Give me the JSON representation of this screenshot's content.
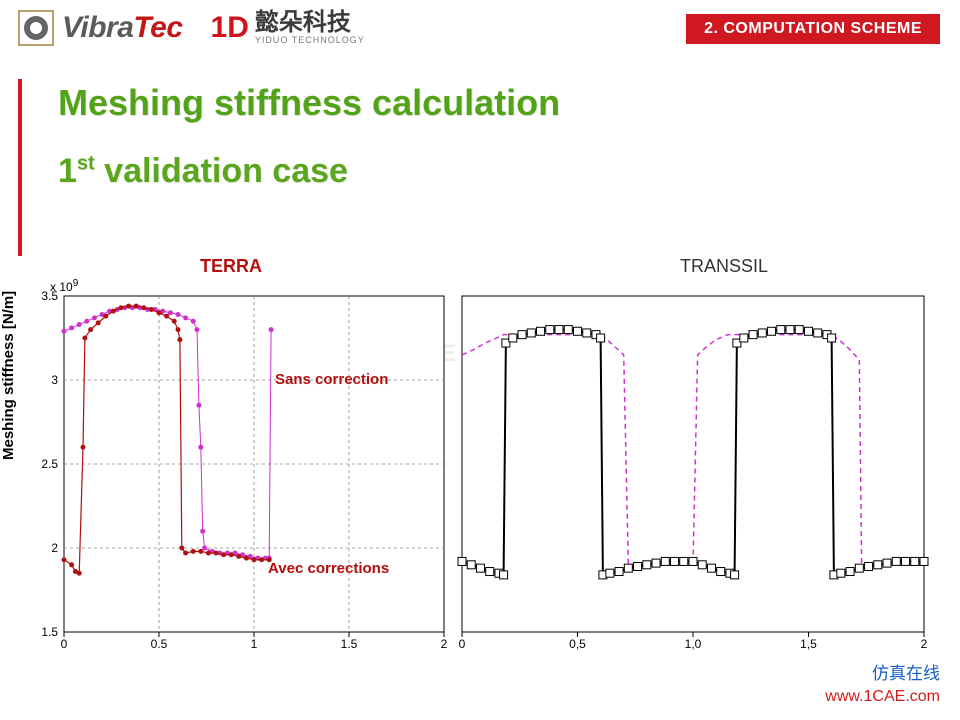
{
  "header": {
    "logo1_vibra": "Vibra",
    "logo1_tec": "Tec",
    "logo2_mark": "1D",
    "logo2_cn": "懿朵科技",
    "logo2_en": "YIDUO TECHNOLOGY",
    "tag": "2. COMPUTATION SCHEME"
  },
  "titles": {
    "main": "Meshing stiffness calculation",
    "sub_before": "1",
    "sub_sup": "st",
    "sub_after": " validation case"
  },
  "watermark": "1CAE.COM",
  "ylabel": "Meshing stiffness  [N/m]",
  "exponent_label": "x 10",
  "exponent_sup": "9",
  "chart_left": {
    "title": "TERRA",
    "note_top": "Sans correction",
    "note_bot": "Avec corrections",
    "type": "line+markers",
    "xlim": [
      0,
      2
    ],
    "ylim": [
      1.5,
      3.5
    ],
    "xticks": [
      0,
      0.5,
      1,
      1.5,
      2
    ],
    "yticks": [
      1.5,
      2,
      2.5,
      3,
      3.5
    ],
    "xtick_labels": [
      "0",
      "0.5",
      "1",
      "1.5",
      "2"
    ],
    "ytick_labels": [
      "1.5",
      "2",
      "2.5",
      "3",
      "3.5"
    ],
    "grid_color": "#888888",
    "grid_dash": "3,3",
    "border_color": "#000000",
    "background": "#ffffff",
    "series": [
      {
        "name": "sans",
        "color": "#d030d0",
        "line_width": 1,
        "dash": "none",
        "marker": "dot",
        "marker_size": 2.5,
        "pts": [
          [
            0.0,
            3.29
          ],
          [
            0.04,
            3.31
          ],
          [
            0.08,
            3.33
          ],
          [
            0.12,
            3.35
          ],
          [
            0.16,
            3.37
          ],
          [
            0.2,
            3.39
          ],
          [
            0.24,
            3.41
          ],
          [
            0.28,
            3.42
          ],
          [
            0.32,
            3.43
          ],
          [
            0.36,
            3.43
          ],
          [
            0.4,
            3.43
          ],
          [
            0.44,
            3.42
          ],
          [
            0.48,
            3.42
          ],
          [
            0.52,
            3.41
          ],
          [
            0.56,
            3.4
          ],
          [
            0.6,
            3.39
          ],
          [
            0.64,
            3.37
          ],
          [
            0.68,
            3.35
          ],
          [
            0.7,
            3.3
          ],
          [
            0.71,
            2.85
          ],
          [
            0.72,
            2.6
          ],
          [
            0.73,
            2.1
          ],
          [
            0.74,
            2.0
          ],
          [
            0.78,
            1.98
          ],
          [
            0.82,
            1.97
          ],
          [
            0.86,
            1.97
          ],
          [
            0.9,
            1.97
          ],
          [
            0.94,
            1.96
          ],
          [
            0.98,
            1.95
          ],
          [
            1.02,
            1.94
          ],
          [
            1.06,
            1.94
          ],
          [
            1.08,
            1.94
          ],
          [
            1.09,
            3.3
          ]
        ]
      },
      {
        "name": "avec",
        "color": "#b01010",
        "line_width": 1.2,
        "dash": "none",
        "marker": "dot",
        "marker_size": 2.5,
        "pts": [
          [
            0.0,
            1.93
          ],
          [
            0.04,
            1.9
          ],
          [
            0.06,
            1.86
          ],
          [
            0.08,
            1.85
          ],
          [
            0.1,
            2.6
          ],
          [
            0.11,
            3.25
          ],
          [
            0.14,
            3.3
          ],
          [
            0.18,
            3.34
          ],
          [
            0.22,
            3.38
          ],
          [
            0.26,
            3.41
          ],
          [
            0.3,
            3.43
          ],
          [
            0.34,
            3.44
          ],
          [
            0.38,
            3.44
          ],
          [
            0.42,
            3.43
          ],
          [
            0.46,
            3.42
          ],
          [
            0.5,
            3.4
          ],
          [
            0.54,
            3.38
          ],
          [
            0.58,
            3.35
          ],
          [
            0.6,
            3.3
          ],
          [
            0.61,
            3.24
          ],
          [
            0.62,
            2.0
          ],
          [
            0.64,
            1.97
          ],
          [
            0.68,
            1.98
          ],
          [
            0.72,
            1.98
          ],
          [
            0.76,
            1.97
          ],
          [
            0.8,
            1.97
          ],
          [
            0.84,
            1.96
          ],
          [
            0.88,
            1.96
          ],
          [
            0.92,
            1.95
          ],
          [
            0.96,
            1.94
          ],
          [
            1.0,
            1.93
          ],
          [
            1.04,
            1.93
          ],
          [
            1.08,
            1.93
          ]
        ]
      }
    ]
  },
  "chart_right": {
    "title": "TRANSSIL",
    "type": "line+markers",
    "xlim": [
      0,
      2
    ],
    "ylim": [
      1.5,
      3.5
    ],
    "xticks": [
      0,
      0.5,
      1,
      1.5,
      2
    ],
    "xtick_labels": [
      "0",
      "0,5",
      "1,0",
      "1,5",
      "2"
    ],
    "border_color": "#000000",
    "background": "#ffffff",
    "series": [
      {
        "name": "dash",
        "color": "#d030d0",
        "line_width": 1.5,
        "dash": "5,4",
        "marker": "none",
        "pts": [
          [
            0.0,
            3.15
          ],
          [
            0.05,
            3.18
          ],
          [
            0.1,
            3.22
          ],
          [
            0.15,
            3.25
          ],
          [
            0.18,
            3.27
          ],
          [
            0.2,
            3.27
          ],
          [
            0.6,
            3.27
          ],
          [
            0.62,
            3.25
          ],
          [
            0.66,
            3.2
          ],
          [
            0.7,
            3.15
          ],
          [
            0.72,
            1.9
          ],
          [
            1.0,
            1.9
          ],
          [
            1.02,
            3.15
          ],
          [
            1.06,
            3.2
          ],
          [
            1.1,
            3.24
          ],
          [
            1.15,
            3.27
          ],
          [
            1.2,
            3.27
          ],
          [
            1.6,
            3.27
          ],
          [
            1.64,
            3.23
          ],
          [
            1.68,
            3.18
          ],
          [
            1.72,
            3.12
          ],
          [
            1.73,
            1.9
          ],
          [
            2.0,
            1.9
          ]
        ]
      },
      {
        "name": "solid",
        "color": "#000000",
        "line_width": 2,
        "dash": "none",
        "marker": "square",
        "marker_size": 4,
        "marker_fill": "#ffffff",
        "pts": [
          [
            0.0,
            1.92
          ],
          [
            0.04,
            1.9
          ],
          [
            0.08,
            1.88
          ],
          [
            0.12,
            1.86
          ],
          [
            0.16,
            1.85
          ],
          [
            0.18,
            1.84
          ],
          [
            0.19,
            3.22
          ],
          [
            0.22,
            3.25
          ],
          [
            0.26,
            3.27
          ],
          [
            0.3,
            3.28
          ],
          [
            0.34,
            3.29
          ],
          [
            0.38,
            3.3
          ],
          [
            0.42,
            3.3
          ],
          [
            0.46,
            3.3
          ],
          [
            0.5,
            3.29
          ],
          [
            0.54,
            3.28
          ],
          [
            0.58,
            3.27
          ],
          [
            0.6,
            3.25
          ],
          [
            0.61,
            1.84
          ],
          [
            0.64,
            1.85
          ],
          [
            0.68,
            1.86
          ],
          [
            0.72,
            1.88
          ],
          [
            0.76,
            1.89
          ],
          [
            0.8,
            1.9
          ],
          [
            0.84,
            1.91
          ],
          [
            0.88,
            1.92
          ],
          [
            0.92,
            1.92
          ],
          [
            0.96,
            1.92
          ],
          [
            1.0,
            1.92
          ],
          [
            1.04,
            1.9
          ],
          [
            1.08,
            1.88
          ],
          [
            1.12,
            1.86
          ],
          [
            1.16,
            1.85
          ],
          [
            1.18,
            1.84
          ],
          [
            1.19,
            3.22
          ],
          [
            1.22,
            3.25
          ],
          [
            1.26,
            3.27
          ],
          [
            1.3,
            3.28
          ],
          [
            1.34,
            3.29
          ],
          [
            1.38,
            3.3
          ],
          [
            1.42,
            3.3
          ],
          [
            1.46,
            3.3
          ],
          [
            1.5,
            3.29
          ],
          [
            1.54,
            3.28
          ],
          [
            1.58,
            3.27
          ],
          [
            1.6,
            3.25
          ],
          [
            1.61,
            1.84
          ],
          [
            1.64,
            1.85
          ],
          [
            1.68,
            1.86
          ],
          [
            1.72,
            1.88
          ],
          [
            1.76,
            1.89
          ],
          [
            1.8,
            1.9
          ],
          [
            1.84,
            1.91
          ],
          [
            1.88,
            1.92
          ],
          [
            1.92,
            1.92
          ],
          [
            1.96,
            1.92
          ],
          [
            2.0,
            1.92
          ]
        ]
      }
    ]
  },
  "footer": {
    "cn": "仿真在线",
    "url": "www.1CAE.com"
  },
  "colors": {
    "red": "#cf1820",
    "green": "#53a318",
    "dark_red": "#b50f10"
  }
}
